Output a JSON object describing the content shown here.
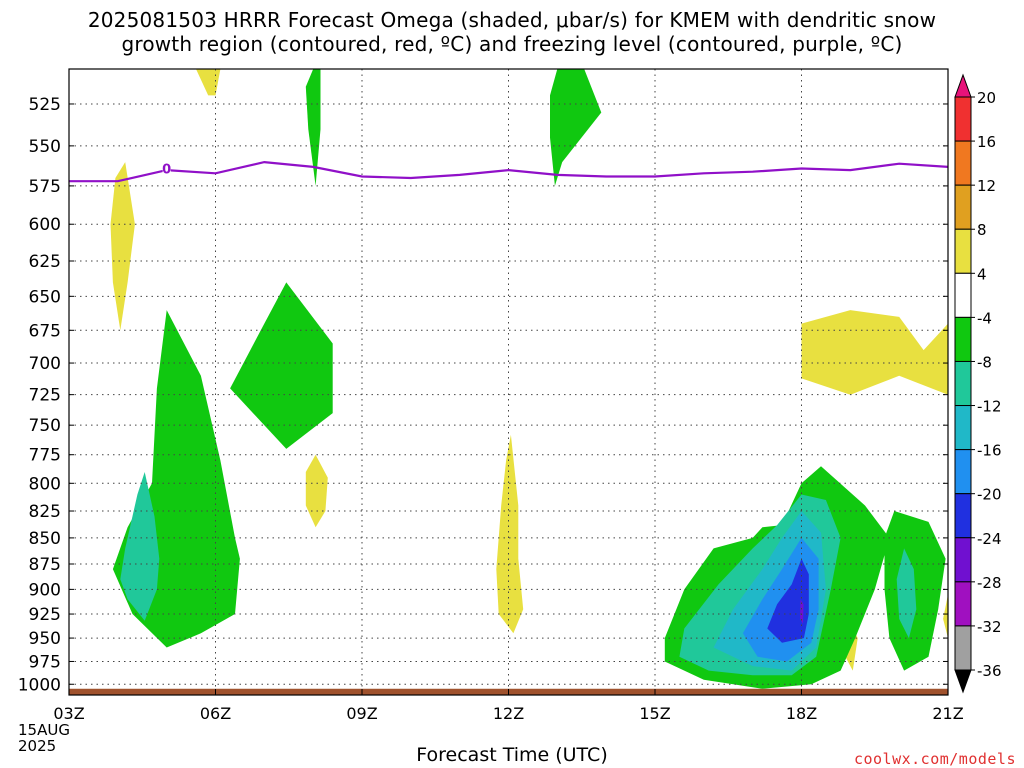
{
  "chart_data": {
    "type": "heatmap",
    "title_line1": "2025081503 HRRR Forecast Omega (shaded, μbar/s) for KMEM with dendritic snow",
    "title_line2": "growth region (contoured, red, ºC) and freezing level (contoured, purple, ºC)",
    "xlabel": "Forecast Time (UTC)",
    "x_ticks": [
      "03Z",
      "06Z",
      "09Z",
      "12Z",
      "15Z",
      "18Z",
      "21Z"
    ],
    "x_date_line1": "15AUG",
    "x_date_line2": "2025",
    "y_ticks": [
      525,
      550,
      575,
      600,
      625,
      650,
      675,
      700,
      725,
      750,
      775,
      800,
      825,
      850,
      875,
      900,
      925,
      950,
      975,
      1000
    ],
    "y_range_hPa": [
      505,
      1012
    ],
    "y_scale": "log",
    "x_range_hours_utc": [
      3,
      21
    ],
    "grid": true,
    "colorbar": {
      "labels": [
        20,
        16,
        12,
        8,
        4,
        -4,
        -8,
        -12,
        -16,
        -20,
        -24,
        -28,
        -32,
        -36
      ],
      "colors": [
        "#e8127a",
        "#f03030",
        "#f07820",
        "#e0a020",
        "#e8e040",
        "#ffffff",
        "#10c810",
        "#20c89a",
        "#20b8c8",
        "#2090f0",
        "#2030e0",
        "#7010d0",
        "#a010c0",
        "#a0a0a0",
        "#000000"
      ]
    },
    "freezing_level": {
      "label": "0",
      "color": "#9010c8",
      "points": [
        [
          3,
          572
        ],
        [
          4,
          572
        ],
        [
          5,
          565
        ],
        [
          6,
          567
        ],
        [
          7,
          560
        ],
        [
          8,
          563
        ],
        [
          9,
          569
        ],
        [
          10,
          570
        ],
        [
          11,
          568
        ],
        [
          12,
          565
        ],
        [
          13,
          568
        ],
        [
          14,
          569
        ],
        [
          15,
          569
        ],
        [
          16,
          567
        ],
        [
          17,
          566
        ],
        [
          18,
          564
        ],
        [
          19,
          565
        ],
        [
          20,
          561
        ],
        [
          21,
          563
        ]
      ]
    },
    "regions": [
      {
        "level": "4",
        "color": "#e8e040",
        "points": [
          [
            5.6,
            505
          ],
          [
            6.1,
            505
          ],
          [
            6.0,
            520
          ],
          [
            5.85,
            520
          ]
        ]
      },
      {
        "level": "4",
        "color": "#e8e040",
        "points": [
          [
            4.15,
            560
          ],
          [
            4.35,
            600
          ],
          [
            4.2,
            640
          ],
          [
            4.05,
            675
          ],
          [
            3.9,
            640
          ],
          [
            3.85,
            600
          ],
          [
            3.95,
            570
          ]
        ]
      },
      {
        "level": "4",
        "color": "#e8e040",
        "points": [
          [
            8.05,
            775
          ],
          [
            8.3,
            795
          ],
          [
            8.25,
            825
          ],
          [
            8.05,
            840
          ],
          [
            7.85,
            820
          ],
          [
            7.85,
            790
          ]
        ]
      },
      {
        "level": "4",
        "color": "#e8e040",
        "points": [
          [
            12.05,
            758
          ],
          [
            12.2,
            820
          ],
          [
            12.2,
            870
          ],
          [
            12.3,
            920
          ],
          [
            12.1,
            945
          ],
          [
            11.8,
            925
          ],
          [
            11.75,
            880
          ],
          [
            11.85,
            820
          ],
          [
            11.95,
            780
          ]
        ]
      },
      {
        "level": "4",
        "color": "#e8e040",
        "points": [
          [
            18,
            670
          ],
          [
            19,
            660
          ],
          [
            20,
            665
          ],
          [
            20.5,
            690
          ],
          [
            21,
            670
          ],
          [
            21,
            725
          ],
          [
            20,
            710
          ],
          [
            19,
            725
          ],
          [
            18,
            712
          ]
        ]
      },
      {
        "level": "4",
        "color": "#e8e040",
        "points": [
          [
            19,
            935
          ],
          [
            19.15,
            950
          ],
          [
            19.05,
            985
          ],
          [
            18.9,
            970
          ],
          [
            18.95,
            945
          ]
        ]
      },
      {
        "level": "4",
        "color": "#e8e040",
        "points": [
          [
            21,
            905
          ],
          [
            21,
            950
          ],
          [
            20.9,
            930
          ]
        ]
      },
      {
        "level": "-4",
        "color": "#10c810",
        "points": [
          [
            8.0,
            505
          ],
          [
            8.15,
            505
          ],
          [
            8.15,
            540
          ],
          [
            8.05,
            575
          ],
          [
            7.9,
            540
          ],
          [
            7.85,
            515
          ]
        ]
      },
      {
        "level": "-4",
        "color": "#10c810",
        "points": [
          [
            13.0,
            505
          ],
          [
            13.55,
            505
          ],
          [
            13.9,
            530
          ],
          [
            13.1,
            560
          ],
          [
            12.95,
            575
          ],
          [
            12.85,
            545
          ],
          [
            12.85,
            520
          ]
        ]
      },
      {
        "level": "-4",
        "color": "#10c810",
        "points": [
          [
            5.0,
            660
          ],
          [
            5.7,
            710
          ],
          [
            6.1,
            780
          ],
          [
            6.4,
            850
          ],
          [
            6.5,
            870
          ],
          [
            6.4,
            925
          ],
          [
            5.7,
            945
          ],
          [
            5.0,
            960
          ],
          [
            4.3,
            925
          ],
          [
            3.9,
            880
          ],
          [
            4.2,
            840
          ],
          [
            4.7,
            800
          ],
          [
            4.8,
            720
          ]
        ]
      },
      {
        "level": "-4",
        "color": "#10c810",
        "points": [
          [
            7.45,
            640
          ],
          [
            8.4,
            685
          ],
          [
            8.4,
            740
          ],
          [
            7.45,
            770
          ],
          [
            6.3,
            720
          ],
          [
            7.0,
            670
          ]
        ]
      },
      {
        "level": "-4",
        "color": "#10c810",
        "points": [
          [
            17.0,
            850
          ],
          [
            17.2,
            840
          ],
          [
            17.6,
            838
          ],
          [
            18.0,
            800
          ],
          [
            18.4,
            785
          ],
          [
            19.3,
            820
          ],
          [
            19.8,
            850
          ],
          [
            19.5,
            900
          ],
          [
            19.1,
            950
          ],
          [
            18.8,
            985
          ],
          [
            18.2,
            1000
          ],
          [
            17.2,
            1005
          ],
          [
            16.0,
            995
          ],
          [
            15.2,
            975
          ],
          [
            15.2,
            950
          ],
          [
            15.6,
            900
          ],
          [
            16.2,
            860
          ]
        ]
      },
      {
        "level": "-4",
        "color": "#10c810",
        "points": [
          [
            19.9,
            825
          ],
          [
            20.6,
            835
          ],
          [
            20.95,
            870
          ],
          [
            20.8,
            920
          ],
          [
            20.6,
            970
          ],
          [
            20.1,
            985
          ],
          [
            19.8,
            950
          ],
          [
            19.7,
            900
          ],
          [
            19.7,
            850
          ]
        ]
      },
      {
        "level": "-8",
        "color": "#20c89a",
        "points": [
          [
            4.55,
            790
          ],
          [
            4.75,
            830
          ],
          [
            4.85,
            870
          ],
          [
            4.8,
            900
          ],
          [
            4.55,
            932
          ],
          [
            4.2,
            910
          ],
          [
            4.05,
            890
          ],
          [
            4.15,
            860
          ],
          [
            4.4,
            810
          ]
        ]
      },
      {
        "level": "-8",
        "color": "#20c89a",
        "points": [
          [
            18.0,
            810
          ],
          [
            18.5,
            815
          ],
          [
            18.8,
            850
          ],
          [
            18.6,
            900
          ],
          [
            18.3,
            970
          ],
          [
            17.8,
            990
          ],
          [
            17.0,
            990
          ],
          [
            16.1,
            985
          ],
          [
            15.5,
            970
          ],
          [
            15.6,
            940
          ],
          [
            16.3,
            895
          ],
          [
            17.0,
            860
          ],
          [
            17.5,
            838
          ]
        ]
      },
      {
        "level": "-8",
        "color": "#20c89a",
        "points": [
          [
            20.1,
            860
          ],
          [
            20.3,
            880
          ],
          [
            20.35,
            920
          ],
          [
            20.2,
            950
          ],
          [
            20.0,
            930
          ],
          [
            19.95,
            890
          ]
        ]
      },
      {
        "level": "-12",
        "color": "#20b8c8",
        "points": [
          [
            18.0,
            825
          ],
          [
            18.4,
            845
          ],
          [
            18.5,
            900
          ],
          [
            18.3,
            960
          ],
          [
            17.8,
            985
          ],
          [
            17.0,
            980
          ],
          [
            16.2,
            960
          ],
          [
            16.6,
            920
          ],
          [
            17.2,
            880
          ],
          [
            17.6,
            850
          ]
        ]
      },
      {
        "level": "-16",
        "color": "#2090f0",
        "points": [
          [
            18.0,
            850
          ],
          [
            18.35,
            870
          ],
          [
            18.35,
            920
          ],
          [
            18.2,
            955
          ],
          [
            17.7,
            975
          ],
          [
            17.1,
            970
          ],
          [
            16.8,
            945
          ],
          [
            17.2,
            910
          ],
          [
            17.6,
            880
          ]
        ]
      },
      {
        "level": "-20",
        "color": "#2030e0",
        "points": [
          [
            18.0,
            870
          ],
          [
            18.15,
            885
          ],
          [
            18.15,
            925
          ],
          [
            18.05,
            950
          ],
          [
            17.6,
            955
          ],
          [
            17.3,
            940
          ],
          [
            17.5,
            915
          ],
          [
            17.8,
            895
          ]
        ]
      },
      {
        "level": "-24",
        "color": "#7010d0",
        "points": [
          [
            17.98,
            910
          ],
          [
            18.04,
            915
          ],
          [
            18.03,
            935
          ],
          [
            17.97,
            930
          ]
        ]
      }
    ]
  },
  "watermark": "coolwx.com/models"
}
